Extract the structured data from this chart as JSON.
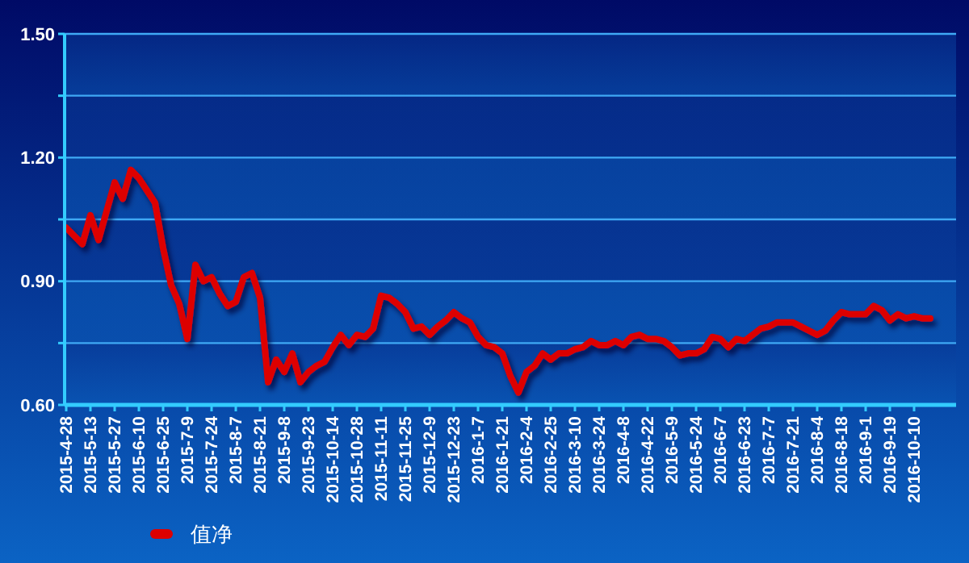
{
  "chart_data": {
    "type": "line",
    "categories": [
      "2015-4-28",
      null,
      null,
      "2015-5-13",
      null,
      null,
      "2015-5-27",
      null,
      null,
      "2015-6-10",
      null,
      null,
      "2015-6-25",
      null,
      null,
      "2015-7-9",
      null,
      null,
      "2015-7-24",
      null,
      null,
      "2015-8-7",
      null,
      null,
      "2015-8-21",
      null,
      null,
      "2015-9-8",
      null,
      null,
      "2015-9-23",
      null,
      null,
      "2015-10-14",
      null,
      null,
      "2015-10-28",
      null,
      null,
      "2015-11-11",
      null,
      null,
      "2015-11-25",
      null,
      null,
      "2015-12-9",
      null,
      null,
      "2015-12-23",
      null,
      null,
      "2016-1-7",
      null,
      null,
      "2016-1-21",
      null,
      null,
      "2016-2-4",
      null,
      null,
      "2016-2-25",
      null,
      null,
      "2016-3-10",
      null,
      null,
      "2016-3-24",
      null,
      null,
      "2016-4-8",
      null,
      null,
      "2016-4-22",
      null,
      null,
      "2016-5-9",
      null,
      null,
      "2016-5-24",
      null,
      null,
      "2016-6-7",
      null,
      null,
      "2016-6-23",
      null,
      null,
      "2016-7-7",
      null,
      null,
      "2016-7-21",
      null,
      null,
      "2016-8-4",
      null,
      null,
      "2016-8-18",
      null,
      null,
      "2016-9-1",
      null,
      null,
      "2016-9-19",
      null,
      null,
      "2016-10-10",
      null,
      null,
      null
    ],
    "series": [
      {
        "name": "值净",
        "color": "#dd0000",
        "values": [
          1.03,
          1.01,
          0.99,
          1.06,
          1.0,
          1.07,
          1.14,
          1.1,
          1.17,
          1.15,
          1.12,
          1.09,
          0.98,
          0.89,
          0.845,
          0.76,
          0.94,
          0.9,
          0.91,
          0.87,
          0.84,
          0.85,
          0.91,
          0.92,
          0.86,
          0.655,
          0.71,
          0.68,
          0.725,
          0.655,
          0.68,
          0.695,
          0.705,
          0.74,
          0.77,
          0.745,
          0.77,
          0.765,
          0.785,
          0.865,
          0.86,
          0.845,
          0.825,
          0.785,
          0.79,
          0.77,
          0.79,
          0.805,
          0.825,
          0.81,
          0.8,
          0.765,
          0.745,
          0.74,
          0.725,
          0.67,
          0.63,
          0.68,
          0.695,
          0.725,
          0.71,
          0.725,
          0.725,
          0.735,
          0.74,
          0.755,
          0.745,
          0.745,
          0.755,
          0.745,
          0.765,
          0.77,
          0.76,
          0.76,
          0.755,
          0.74,
          0.72,
          0.725,
          0.725,
          0.735,
          0.765,
          0.76,
          0.74,
          0.76,
          0.755,
          0.77,
          0.785,
          0.79,
          0.8,
          0.8,
          0.8,
          0.79,
          0.78,
          0.77,
          0.78,
          0.805,
          0.825,
          0.82,
          0.82,
          0.82,
          0.84,
          0.83,
          0.805,
          0.82,
          0.81,
          0.815,
          0.81,
          0.81,
          null
        ]
      }
    ],
    "ylim": [
      0.6,
      1.5
    ],
    "yticks": [
      {
        "value": 0.6,
        "label": "0.60"
      },
      {
        "value": 0.75,
        "label": null
      },
      {
        "value": 0.9,
        "label": "0.90"
      },
      {
        "value": 1.05,
        "label": null
      },
      {
        "value": 1.2,
        "label": "1.20"
      },
      {
        "value": 1.35,
        "label": null
      },
      {
        "value": 1.5,
        "label": "1.50"
      }
    ],
    "grid": "y",
    "legend": "bottom left",
    "line_style": "solid",
    "marker": "none"
  }
}
